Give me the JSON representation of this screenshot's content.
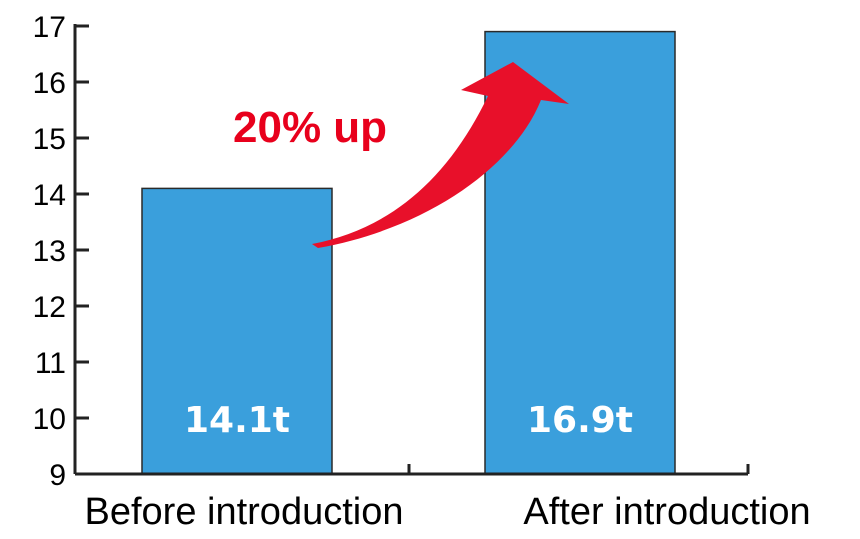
{
  "chart_data": {
    "type": "bar",
    "categories": [
      "Before introduction",
      "After introduction"
    ],
    "values": [
      14.1,
      16.9
    ],
    "data_labels": [
      "14.1t",
      "16.9t"
    ],
    "ylim": [
      9,
      17
    ],
    "yticks": [
      9,
      10,
      11,
      12,
      13,
      14,
      15,
      16,
      17
    ],
    "title": "",
    "xlabel": "",
    "ylabel": "",
    "grid": false,
    "annotation": {
      "text": "20% up",
      "color": "#e8001c",
      "arrow_color": "#e8102a"
    },
    "colors": {
      "bar": "#3a9fdc",
      "bar_edge": "#2a2a2a",
      "axis": "#222222"
    }
  }
}
